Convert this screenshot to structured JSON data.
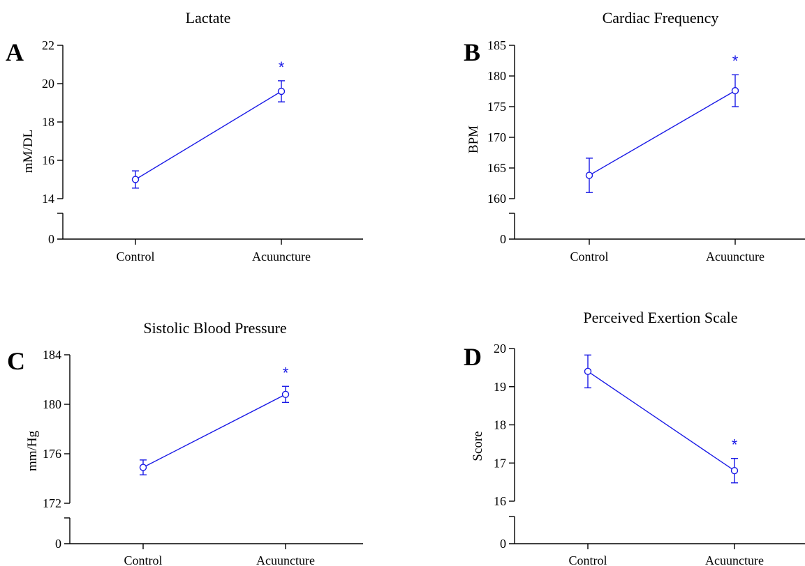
{
  "colors": {
    "series": "#1a1ae6",
    "axis": "#000000"
  },
  "chart_data": [
    {
      "type": "line",
      "panel": "A",
      "title": "Lactate",
      "ylabel": "mM/DL",
      "categories": [
        "Control",
        "Acuuncture"
      ],
      "y_ticks_upper": [
        "14",
        "16",
        "18",
        "20",
        "22"
      ],
      "y_tick_lower": "0",
      "ylim": [
        14,
        22
      ],
      "axis_break": true,
      "series": [
        {
          "values": [
            15.0,
            19.6
          ],
          "errors": [
            0.45,
            0.55
          ]
        }
      ],
      "annotations": [
        {
          "text": "*",
          "category": "Acuuncture"
        }
      ]
    },
    {
      "type": "line",
      "panel": "B",
      "title": "Cardiac Frequency",
      "ylabel": "BPM",
      "categories": [
        "Control",
        "Acuuncture"
      ],
      "y_ticks_upper": [
        "160",
        "165",
        "170",
        "175",
        "180",
        "185"
      ],
      "y_tick_lower": "0",
      "ylim": [
        160,
        185
      ],
      "axis_break": true,
      "series": [
        {
          "values": [
            163.8,
            177.6
          ],
          "errors": [
            2.8,
            2.6
          ]
        }
      ],
      "annotations": [
        {
          "text": "*",
          "category": "Acuuncture"
        }
      ]
    },
    {
      "type": "line",
      "panel": "C",
      "title": "Sistolic Blood Pressure",
      "ylabel": "mm/Hg",
      "categories": [
        "Control",
        "Acuuncture"
      ],
      "y_ticks_upper": [
        "172",
        "176",
        "180",
        "184"
      ],
      "y_tick_lower": "0",
      "ylim": [
        172,
        184
      ],
      "axis_break": true,
      "series": [
        {
          "values": [
            174.9,
            180.8
          ],
          "errors": [
            0.6,
            0.65
          ]
        }
      ],
      "annotations": [
        {
          "text": "*",
          "category": "Acuuncture"
        }
      ]
    },
    {
      "type": "line",
      "panel": "D",
      "title": "Perceived Exertion Scale",
      "ylabel": "Score",
      "categories": [
        "Control",
        "Acuuncture"
      ],
      "y_ticks_upper": [
        "16",
        "17",
        "18",
        "19",
        "20"
      ],
      "y_tick_lower": "0",
      "ylim": [
        16,
        20
      ],
      "axis_break": true,
      "series": [
        {
          "values": [
            19.4,
            16.8
          ],
          "errors": [
            0.43,
            0.32
          ]
        }
      ],
      "annotations": [
        {
          "text": "*",
          "category": "Acuuncture"
        }
      ]
    }
  ]
}
